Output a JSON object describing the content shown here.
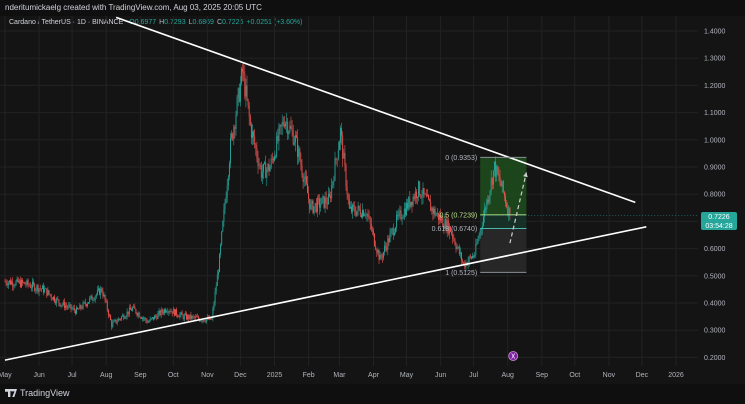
{
  "header": {
    "credit": "nderitumickaelg created with TradingView.com, Aug 03, 2025 20:05 UTC"
  },
  "legend": {
    "symbol": "Cardano / TetherUS · 1D · BINANCE",
    "open_label": "O",
    "open": "0.6977",
    "high_label": "H",
    "high": "0.7293",
    "low_label": "L",
    "low": "0.6869",
    "close_label": "C",
    "close": "0.7226",
    "change": "+0.0251 (+3.60%)"
  },
  "price_tag": {
    "price": "0.7226",
    "countdown": "03:54:28",
    "color": "#26a69a"
  },
  "footer": {
    "brand": "TradingView"
  },
  "colors": {
    "background": "#141414",
    "up": "#26a69a",
    "down": "#ef5350",
    "trendline": "#ffffff",
    "target_zone": "#1f4d1c"
  },
  "chart_data": {
    "type": "candlestick",
    "title": "Cardano / TetherUS · 1D · BINANCE",
    "x_tick_labels": [
      "May",
      "Jun",
      "Jul",
      "Aug",
      "Sep",
      "Oct",
      "Nov",
      "Dec",
      "2025",
      "Feb",
      "Mar",
      "Apr",
      "May",
      "Jun",
      "Jul",
      "Aug",
      "Sep",
      "Oct",
      "Nov",
      "Dec",
      "2026"
    ],
    "y_tick_labels": [
      "1.4000",
      "1.3000",
      "1.2000",
      "1.1000",
      "1.0000",
      "0.9000",
      "0.8000",
      "0.7000",
      "0.6000",
      "0.5000",
      "0.4000",
      "0.3000",
      "0.2000"
    ],
    "ylim": [
      0.17,
      1.43
    ],
    "grid": true,
    "price_path": [
      {
        "date": "2024-05-01",
        "close": 0.48
      },
      {
        "date": "2024-05-20",
        "close": 0.47
      },
      {
        "date": "2024-06-05",
        "close": 0.45
      },
      {
        "date": "2024-06-20",
        "close": 0.4
      },
      {
        "date": "2024-07-05",
        "close": 0.37
      },
      {
        "date": "2024-07-28",
        "close": 0.45
      },
      {
        "date": "2024-08-06",
        "close": 0.32
      },
      {
        "date": "2024-08-25",
        "close": 0.38
      },
      {
        "date": "2024-09-08",
        "close": 0.33
      },
      {
        "date": "2024-09-25",
        "close": 0.38
      },
      {
        "date": "2024-10-10",
        "close": 0.35
      },
      {
        "date": "2024-10-28",
        "close": 0.34
      },
      {
        "date": "2024-11-05",
        "close": 0.34
      },
      {
        "date": "2024-11-12",
        "close": 0.56
      },
      {
        "date": "2024-11-22",
        "close": 0.98
      },
      {
        "date": "2024-12-03",
        "close": 1.25
      },
      {
        "date": "2024-12-10",
        "close": 1.05
      },
      {
        "date": "2024-12-20",
        "close": 0.88
      },
      {
        "date": "2024-12-28",
        "close": 0.9
      },
      {
        "date": "2025-01-10",
        "close": 1.08
      },
      {
        "date": "2025-01-20",
        "close": 1.0
      },
      {
        "date": "2025-02-03",
        "close": 0.75
      },
      {
        "date": "2025-02-20",
        "close": 0.78
      },
      {
        "date": "2025-03-02",
        "close": 1.03
      },
      {
        "date": "2025-03-10",
        "close": 0.74
      },
      {
        "date": "2025-03-25",
        "close": 0.74
      },
      {
        "date": "2025-04-07",
        "close": 0.56
      },
      {
        "date": "2025-04-22",
        "close": 0.7
      },
      {
        "date": "2025-05-12",
        "close": 0.82
      },
      {
        "date": "2025-05-25",
        "close": 0.74
      },
      {
        "date": "2025-06-10",
        "close": 0.67
      },
      {
        "date": "2025-06-22",
        "close": 0.54
      },
      {
        "date": "2025-07-02",
        "close": 0.58
      },
      {
        "date": "2025-07-10",
        "close": 0.72
      },
      {
        "date": "2025-07-20",
        "close": 0.9
      },
      {
        "date": "2025-07-27",
        "close": 0.82
      },
      {
        "date": "2025-08-03",
        "close": 0.7226
      }
    ],
    "trendlines": [
      {
        "name": "descending resistance",
        "points": [
          {
            "date": "2024-08-10",
            "price": 1.45
          },
          {
            "date": "2025-11-25",
            "price": 0.77
          }
        ]
      },
      {
        "name": "ascending support",
        "points": [
          {
            "date": "2024-05-01",
            "price": 0.19
          },
          {
            "date": "2025-12-05",
            "price": 0.68
          }
        ]
      }
    ],
    "fibonacci": {
      "start_date": "2025-07-07",
      "end_date": "2025-08-18",
      "levels": [
        {
          "label": "0 (0.9353)",
          "price": 0.9353
        },
        {
          "label": "0.5 (0.7239)",
          "price": 0.7239
        },
        {
          "label": "0.618 (0.6740)",
          "price": 0.674
        },
        {
          "label": "1 (0.5125)",
          "price": 0.5125
        }
      ]
    },
    "projection": [
      {
        "date": "2025-08-03",
        "price": 0.62
      },
      {
        "date": "2025-08-18",
        "price": 0.88
      }
    ],
    "last_price": 0.7226
  }
}
